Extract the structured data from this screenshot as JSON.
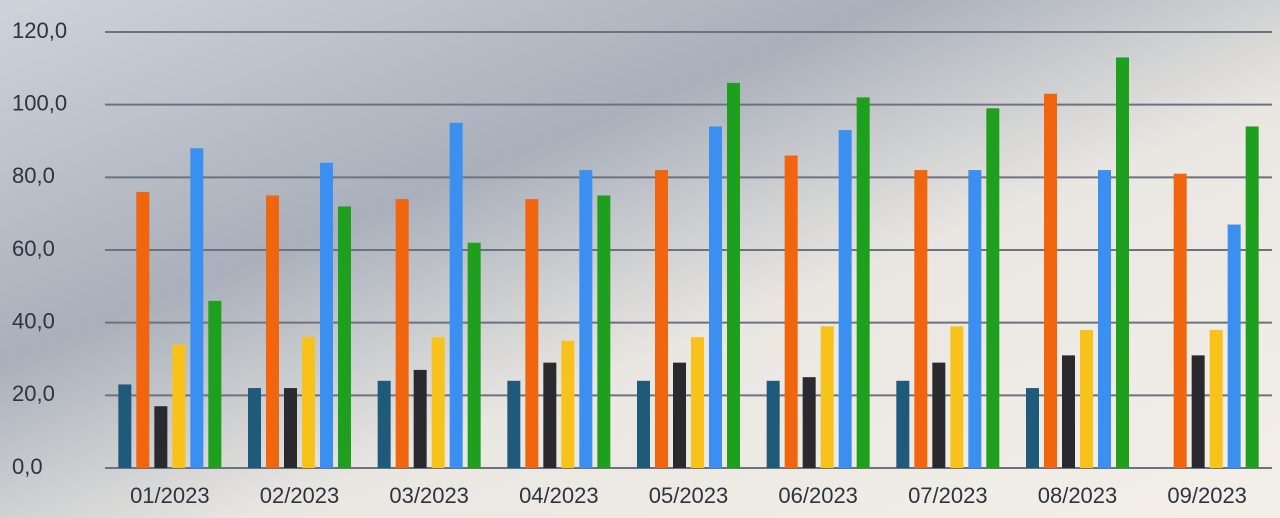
{
  "chart_data": {
    "type": "bar",
    "categories": [
      "01/2023",
      "02/2023",
      "03/2023",
      "04/2023",
      "05/2023",
      "06/2023",
      "07/2023",
      "08/2023",
      "09/2023"
    ],
    "series": [
      {
        "color": "#1f5a7a",
        "values": [
          23,
          22,
          24,
          24,
          24,
          24,
          24,
          22,
          null
        ]
      },
      {
        "color": "#f0650e",
        "values": [
          76,
          75,
          74,
          74,
          82,
          86,
          82,
          103,
          81
        ]
      },
      {
        "color": "#2a2a2e",
        "values": [
          17,
          22,
          27,
          29,
          29,
          25,
          29,
          31,
          31
        ]
      },
      {
        "color": "#f7c21a",
        "values": [
          34,
          36,
          36,
          35,
          36,
          39,
          39,
          38,
          38
        ]
      },
      {
        "color": "#3a8ff0",
        "values": [
          88,
          84,
          95,
          82,
          94,
          93,
          82,
          82,
          67
        ]
      },
      {
        "color": "#1ea01e",
        "values": [
          46,
          72,
          62,
          75,
          106,
          102,
          99,
          113,
          94
        ]
      }
    ],
    "ylim": [
      0,
      120
    ],
    "yticks": [
      {
        "value": 0,
        "label": "0,0"
      },
      {
        "value": 20,
        "label": "20,0"
      },
      {
        "value": 40,
        "label": "40,0"
      },
      {
        "value": 60,
        "label": "60,0"
      },
      {
        "value": 80,
        "label": "80,0"
      },
      {
        "value": 100,
        "label": "100,0"
      },
      {
        "value": 120,
        "label": "120,0"
      }
    ],
    "grid": true
  }
}
